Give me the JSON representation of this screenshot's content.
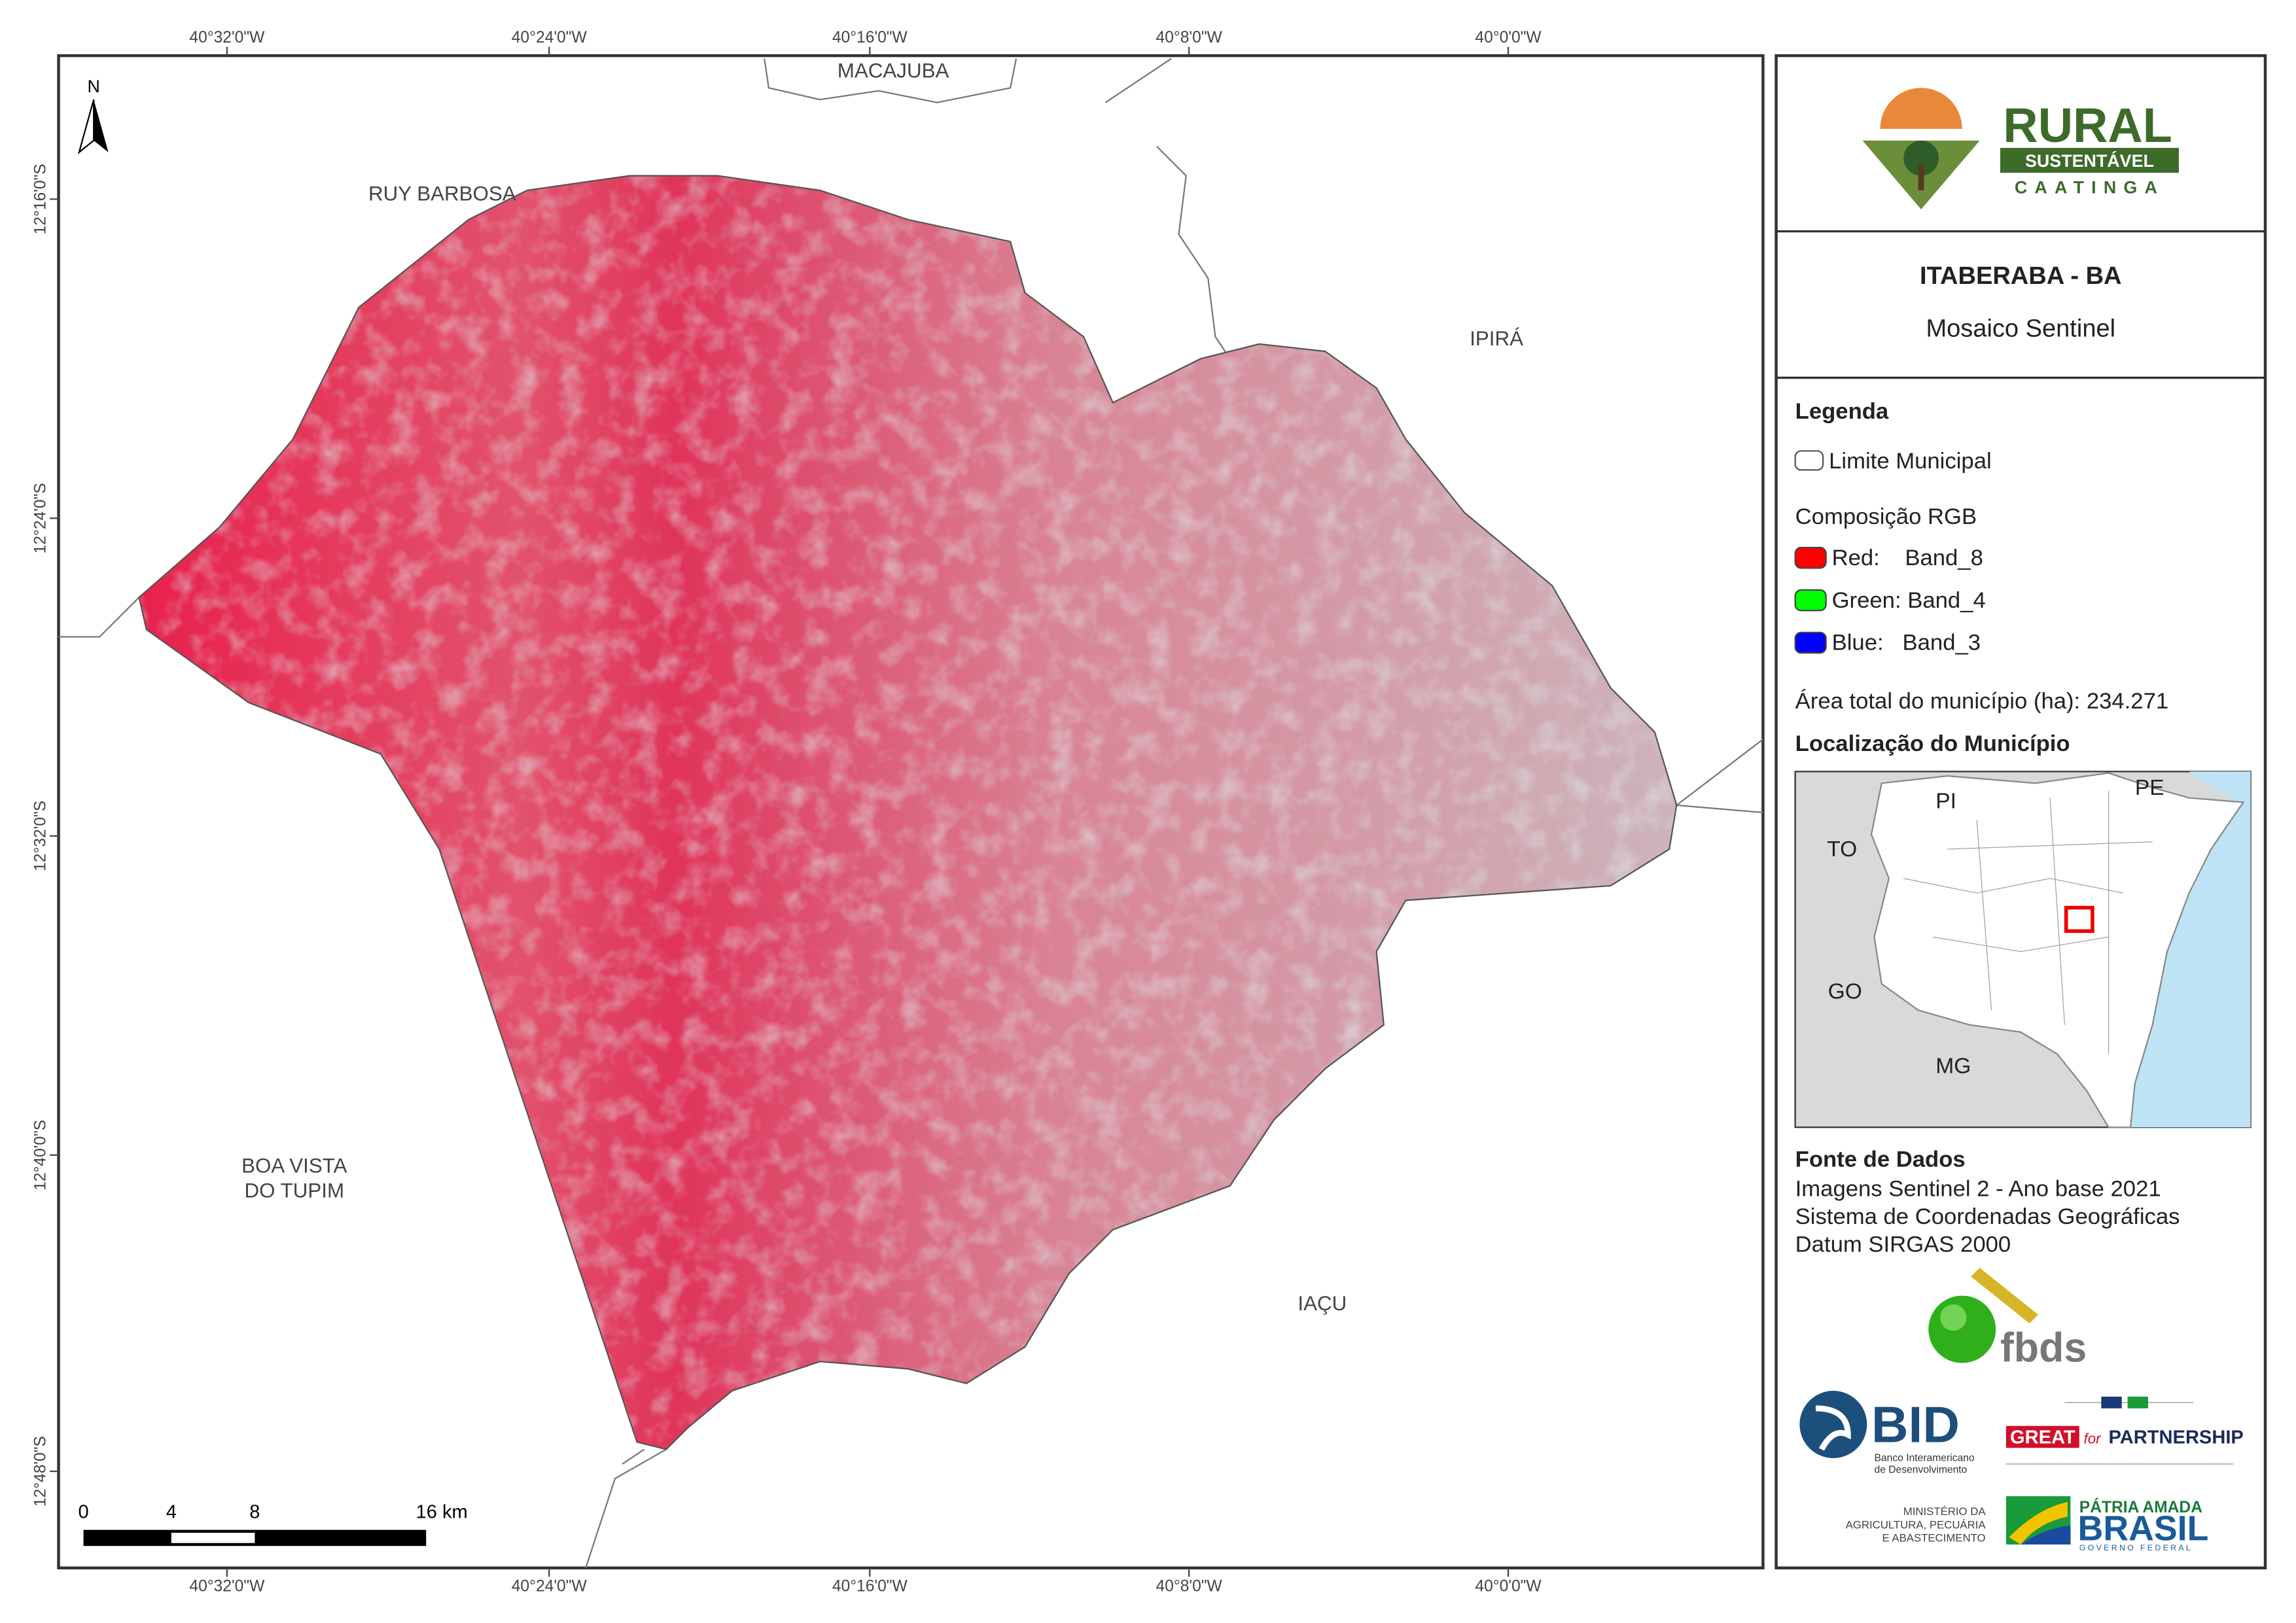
{
  "map": {
    "grid_labels": {
      "top": [
        "40°32'0\"W",
        "40°24'0\"W",
        "40°16'0\"W",
        "40°8'0\"W",
        "40°0'0\"W"
      ],
      "bottom": [
        "40°32'0\"W",
        "40°24'0\"W",
        "40°16'0\"W",
        "40°8'0\"W",
        "40°0'0\"W"
      ],
      "left": [
        "12°16'0\"S",
        "12°24'0\"S",
        "12°32'0\"S",
        "12°40'0\"S",
        "12°48'0\"S"
      ]
    },
    "north_arrow": "N",
    "neighbors": {
      "macajuba": "MACAJUBA",
      "ruy_barbosa": "RUY BARBOSA",
      "ipira": "IPIRÁ",
      "boa_vista_1": "BOA VISTA",
      "boa_vista_2": "DO TUPIM",
      "iacu": "IAÇU"
    },
    "scale_bar": [
      "0",
      "4",
      "8",
      "16 km"
    ]
  },
  "panel": {
    "logo": {
      "rural": "RURAL",
      "sustentavel": "SUSTENTÁVEL",
      "caatinga": "CAATINGA"
    },
    "title": "ITABERABA - BA",
    "subtitle": "Mosaico Sentinel",
    "legend": {
      "heading": "Legenda",
      "boundary": "Limite Municipal",
      "rgb_heading": "Composição RGB",
      "red": "Red:    Band_8",
      "green": "Green: Band_4",
      "blue": "Blue:   Band_3",
      "area": "Área total do município (ha): 234.271"
    },
    "location": {
      "heading": "Localização do Município",
      "states": [
        "PI",
        "PE",
        "TO",
        "GO",
        "MG"
      ]
    },
    "sources": {
      "heading": "Fonte de Dados",
      "lines": [
        "Imagens Sentinel 2 - Ano base 2021",
        "Sistema de Coordenadas Geográficas",
        "Datum SIRGAS 2000"
      ]
    },
    "partners": {
      "fbds": "fbds",
      "bid": "BID",
      "bid_sub_1": "Banco Interamericano",
      "bid_sub_2": "de Desenvolvimento",
      "great": "GREAT",
      "great_for": "for",
      "great_partnership": "PARTNERSHIP",
      "ministry_1": "MINISTÉRIO DA",
      "ministry_2": "AGRICULTURA, PECUÁRIA",
      "ministry_3": "E ABASTECIMENTO",
      "brasil_1": "PÁTRIA AMADA",
      "brasil_2": "BRASIL",
      "brasil_3": "GOVERNO FEDERAL"
    }
  }
}
